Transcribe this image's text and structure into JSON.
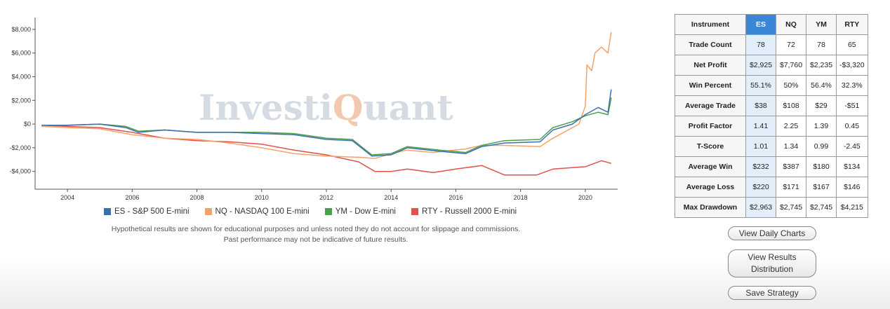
{
  "chart_data": {
    "type": "line",
    "watermark": {
      "part1": "Investi",
      "q": "Q",
      "part2": "uant"
    },
    "xlim": [
      2003.0,
      2021.0
    ],
    "ylim": [
      -5500,
      9000
    ],
    "x_ticks": [
      2004,
      2006,
      2008,
      2010,
      2012,
      2014,
      2016,
      2018,
      2020
    ],
    "y_ticks": [
      8000,
      6000,
      4000,
      2000,
      0,
      -2000,
      -4000
    ],
    "y_tick_labels": [
      "$8,000",
      "$6,000",
      "$4,000",
      "$2,000",
      "$0",
      "-$2,000",
      "-$4,000"
    ],
    "legend_position": "bottom",
    "grid": false,
    "series": [
      {
        "name": "ES - S&P 500 E-mini",
        "color": "#3d6fb0",
        "points": [
          [
            2003.2,
            -100
          ],
          [
            2004,
            -100
          ],
          [
            2005,
            0
          ],
          [
            2005.8,
            -300
          ],
          [
            2006.2,
            -700
          ],
          [
            2007,
            -500
          ],
          [
            2008,
            -700
          ],
          [
            2009,
            -700
          ],
          [
            2010,
            -800
          ],
          [
            2011,
            -900
          ],
          [
            2012,
            -1300
          ],
          [
            2012.8,
            -1400
          ],
          [
            2013.4,
            -2700
          ],
          [
            2014,
            -2600
          ],
          [
            2014.5,
            -2000
          ],
          [
            2015.5,
            -2300
          ],
          [
            2016.3,
            -2500
          ],
          [
            2016.8,
            -1900
          ],
          [
            2017.5,
            -1600
          ],
          [
            2018.6,
            -1500
          ],
          [
            2019,
            -500
          ],
          [
            2019.6,
            0
          ],
          [
            2020,
            800
          ],
          [
            2020.4,
            1400
          ],
          [
            2020.7,
            1000
          ],
          [
            2020.8,
            2925
          ]
        ]
      },
      {
        "name": "NQ - NASDAQ 100 E-mini",
        "color": "#f3a36a",
        "points": [
          [
            2003.2,
            -200
          ],
          [
            2004,
            -300
          ],
          [
            2005,
            -400
          ],
          [
            2006,
            -900
          ],
          [
            2007,
            -1200
          ],
          [
            2008,
            -1300
          ],
          [
            2009,
            -1600
          ],
          [
            2010,
            -2000
          ],
          [
            2011,
            -2500
          ],
          [
            2012,
            -2700
          ],
          [
            2013,
            -2800
          ],
          [
            2013.5,
            -2900
          ],
          [
            2014,
            -2500
          ],
          [
            2014.5,
            -2200
          ],
          [
            2015.3,
            -2400
          ],
          [
            2016.3,
            -2100
          ],
          [
            2016.8,
            -1800
          ],
          [
            2017.5,
            -1800
          ],
          [
            2018.6,
            -1900
          ],
          [
            2019,
            -1200
          ],
          [
            2019.8,
            0
          ],
          [
            2020,
            1500
          ],
          [
            2020.05,
            5000
          ],
          [
            2020.2,
            4500
          ],
          [
            2020.3,
            6000
          ],
          [
            2020.5,
            6500
          ],
          [
            2020.7,
            6000
          ],
          [
            2020.8,
            7760
          ]
        ]
      },
      {
        "name": "YM - Dow E-mini",
        "color": "#49a04b",
        "points": [
          [
            2003.2,
            -100
          ],
          [
            2004,
            -100
          ],
          [
            2005,
            0
          ],
          [
            2005.8,
            -200
          ],
          [
            2006.2,
            -600
          ],
          [
            2007,
            -500
          ],
          [
            2008,
            -700
          ],
          [
            2009,
            -700
          ],
          [
            2010,
            -700
          ],
          [
            2011,
            -800
          ],
          [
            2012,
            -1200
          ],
          [
            2012.8,
            -1300
          ],
          [
            2013.4,
            -2600
          ],
          [
            2014,
            -2500
          ],
          [
            2014.5,
            -1900
          ],
          [
            2015.5,
            -2200
          ],
          [
            2016.3,
            -2400
          ],
          [
            2016.8,
            -1800
          ],
          [
            2017.5,
            -1400
          ],
          [
            2018.6,
            -1300
          ],
          [
            2019,
            -300
          ],
          [
            2019.6,
            200
          ],
          [
            2020,
            700
          ],
          [
            2020.4,
            1000
          ],
          [
            2020.7,
            800
          ],
          [
            2020.8,
            2235
          ]
        ]
      },
      {
        "name": "RTY - Russell 2000 E-mini",
        "color": "#e0524a",
        "points": [
          [
            2003.2,
            -100
          ],
          [
            2004,
            -200
          ],
          [
            2005,
            -300
          ],
          [
            2006,
            -700
          ],
          [
            2007,
            -1200
          ],
          [
            2008,
            -1400
          ],
          [
            2009,
            -1500
          ],
          [
            2010,
            -1700
          ],
          [
            2011,
            -2200
          ],
          [
            2012,
            -2600
          ],
          [
            2013,
            -3200
          ],
          [
            2013.5,
            -4000
          ],
          [
            2014,
            -4000
          ],
          [
            2014.5,
            -3800
          ],
          [
            2015.3,
            -4100
          ],
          [
            2016,
            -3800
          ],
          [
            2016.8,
            -3500
          ],
          [
            2017.5,
            -4300
          ],
          [
            2018.5,
            -4300
          ],
          [
            2019,
            -3800
          ],
          [
            2020,
            -3600
          ],
          [
            2020.5,
            -3100
          ],
          [
            2020.8,
            -3320
          ]
        ]
      }
    ]
  },
  "disclaimer": {
    "line1": "Hypothetical results are shown for educational purposes and unless noted they do not account for slippage and commissions.",
    "line2": "Past performance may not be indicative of future results."
  },
  "table": {
    "headers": [
      "Instrument",
      "ES",
      "NQ",
      "YM",
      "RTY"
    ],
    "rows": [
      [
        "Trade Count",
        "78",
        "72",
        "78",
        "65"
      ],
      [
        "Net Profit",
        "$2,925",
        "$7,760",
        "$2,235",
        "-$3,320"
      ],
      [
        "Win Percent",
        "55.1%",
        "50%",
        "56.4%",
        "32.3%"
      ],
      [
        "Average Trade",
        "$38",
        "$108",
        "$29",
        "-$51"
      ],
      [
        "Profit Factor",
        "1.41",
        "2.25",
        "1.39",
        "0.45"
      ],
      [
        "T-Score",
        "1.01",
        "1.34",
        "0.99",
        "-2.45"
      ],
      [
        "Average Win",
        "$232",
        "$387",
        "$180",
        "$134"
      ],
      [
        "Average Loss",
        "$220",
        "$171",
        "$167",
        "$146"
      ],
      [
        "Max Drawdown",
        "$2,963",
        "$2,745",
        "$2,745",
        "$4,215"
      ]
    ]
  },
  "buttons": {
    "daily_charts": "View Daily Charts",
    "results_distribution_line1": "View Results",
    "results_distribution_line2": "Distribution",
    "save_strategy": "Save Strategy"
  }
}
